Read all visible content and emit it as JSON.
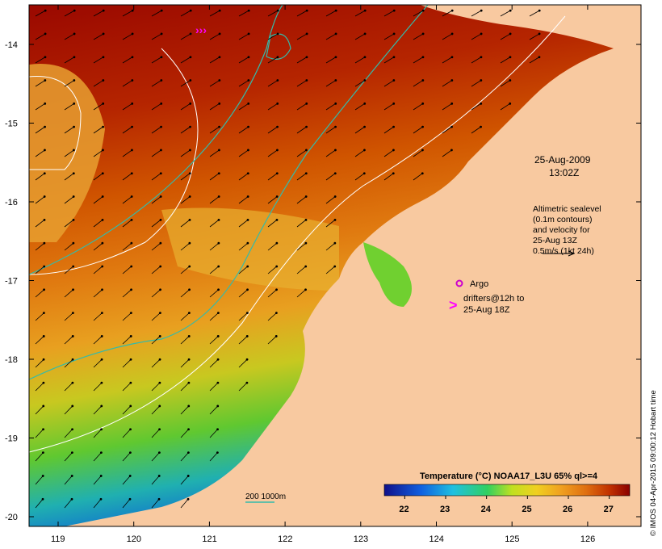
{
  "map": {
    "region": "NW Australia shelf",
    "colors": {
      "land": "#f8c9a0",
      "sst_cold": "#0a0a80",
      "sst_warm": "#8b0000",
      "contour_sealevel": "#ffffff",
      "contour_isobath": "#33bbaa",
      "drifter": "#ff00ff",
      "argo": "#cc00cc"
    },
    "lat_ticks": [
      "-14",
      "-15",
      "-16",
      "-17",
      "-18",
      "-19",
      "-20"
    ],
    "lon_ticks": [
      "119",
      "120",
      "121",
      "122",
      "123",
      "124",
      "125",
      "126"
    ]
  },
  "annotations": {
    "date": "25-Aug-2009",
    "time": "13:02Z",
    "altimetry_lines": [
      "Altimetric sealevel",
      "(0.1m contours)",
      "and velocity for",
      "25-Aug 13Z",
      "0.5m/s (1kt 24h)"
    ],
    "argo_label": "Argo",
    "drifters_line1": "drifters@12h to",
    "drifters_line2": "25-Aug 18Z",
    "isobath_label": "200  1000m",
    "credit": "© IMOS 04-Apr-2015 09:00:12 Hobart time"
  },
  "colorbar": {
    "title": "Temperature (°C) NOAA17_L3U 65% ql>=4",
    "ticks": [
      "22",
      "23",
      "24",
      "25",
      "26",
      "27"
    ],
    "range": [
      21.5,
      27.5
    ]
  }
}
